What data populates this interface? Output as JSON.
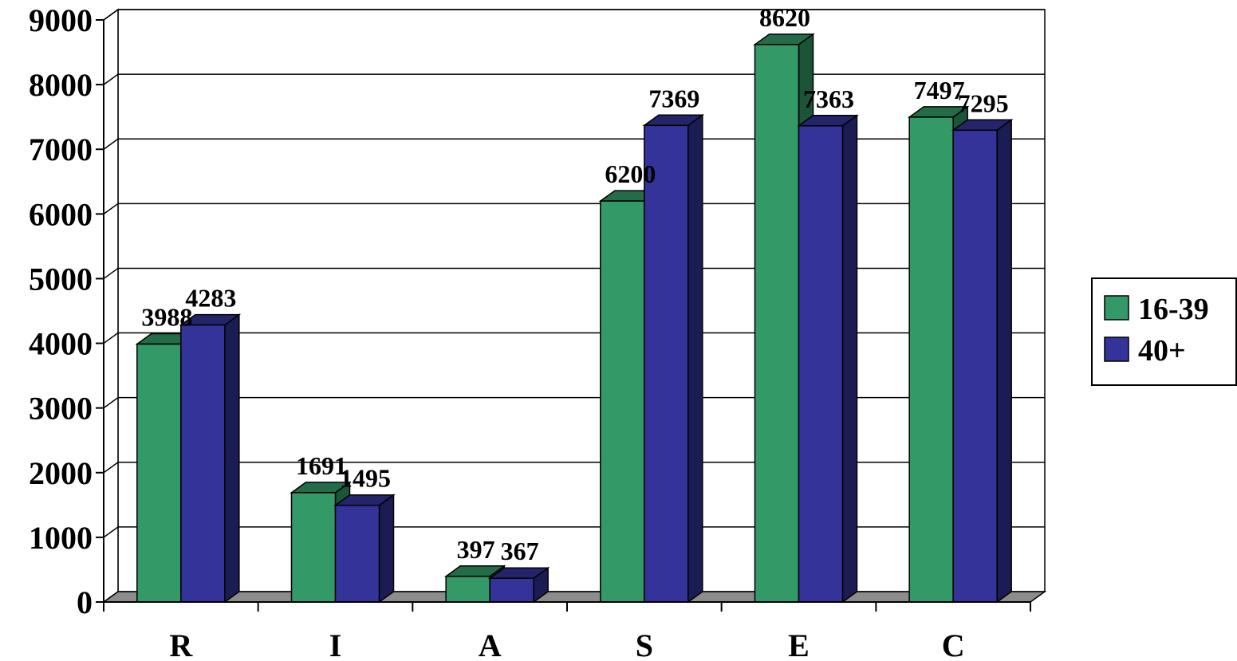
{
  "chart_data": {
    "type": "bar",
    "title": "",
    "xlabel": "",
    "ylabel": "",
    "categories": [
      "R",
      "I",
      "A",
      "S",
      "E",
      "C"
    ],
    "series": [
      {
        "name": "16-39",
        "color": "#339966",
        "values": [
          3988,
          1691,
          397,
          6200,
          8620,
          7497
        ]
      },
      {
        "name": "40+",
        "color": "#333399",
        "values": [
          4283,
          1495,
          367,
          7369,
          7363,
          7295
        ]
      }
    ],
    "ylim": [
      0,
      9000
    ],
    "yticks": [
      0,
      1000,
      2000,
      3000,
      4000,
      5000,
      6000,
      7000,
      8000,
      9000
    ],
    "grid": true,
    "legend": "right",
    "style": "3d-clustered-column"
  }
}
